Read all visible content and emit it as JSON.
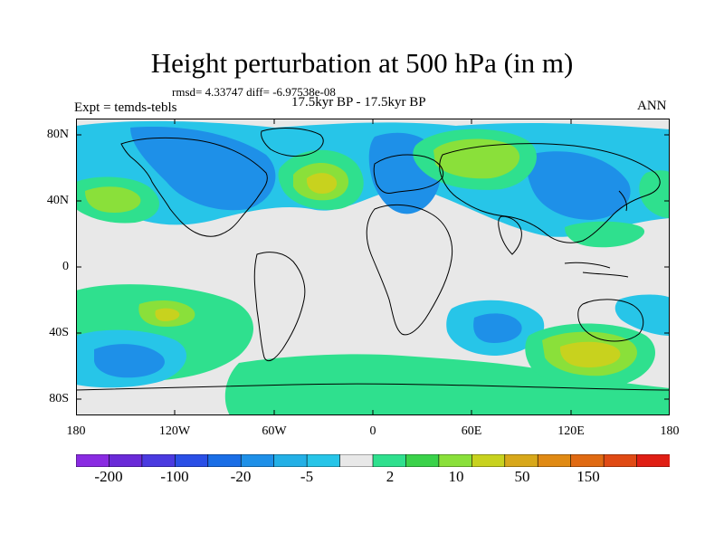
{
  "title": "Height perturbation at 500 hPa (in m)",
  "stats": "rmsd= 4.33747 diff= -6.97538e-08",
  "case_label": "17.5kyr BP - 17.5kyr BP",
  "expt_label": "Expt = temds-tebls",
  "season": "ANN",
  "lat_ticks": [
    "80N",
    "40N",
    "0",
    "40S",
    "80S"
  ],
  "lon_ticks": [
    "180",
    "120W",
    "60W",
    "0",
    "60E",
    "120E",
    "180"
  ],
  "colorbar": {
    "colors": [
      "#8a2be2",
      "#6a2ad8",
      "#4a3ae0",
      "#2a4fe6",
      "#1a6ee6",
      "#1e90e8",
      "#23b0e6",
      "#27c5e8",
      "#e8e8e8",
      "#2fe08e",
      "#3ad24a",
      "#8ae03a",
      "#c8d21e",
      "#d8a81a",
      "#e08a14",
      "#e06a12",
      "#e04a14",
      "#e01e14"
    ],
    "labels": [
      "-200",
      "-100",
      "-20",
      "-5",
      "2",
      "10",
      "50",
      "150"
    ]
  },
  "fill_colors": {
    "neutral": "#e8e8e8",
    "light_blue": "#27c5e8",
    "blue": "#1e90e8",
    "green": "#2fe08e",
    "lime": "#8ae03a",
    "yellow": "#c8d21e"
  }
}
